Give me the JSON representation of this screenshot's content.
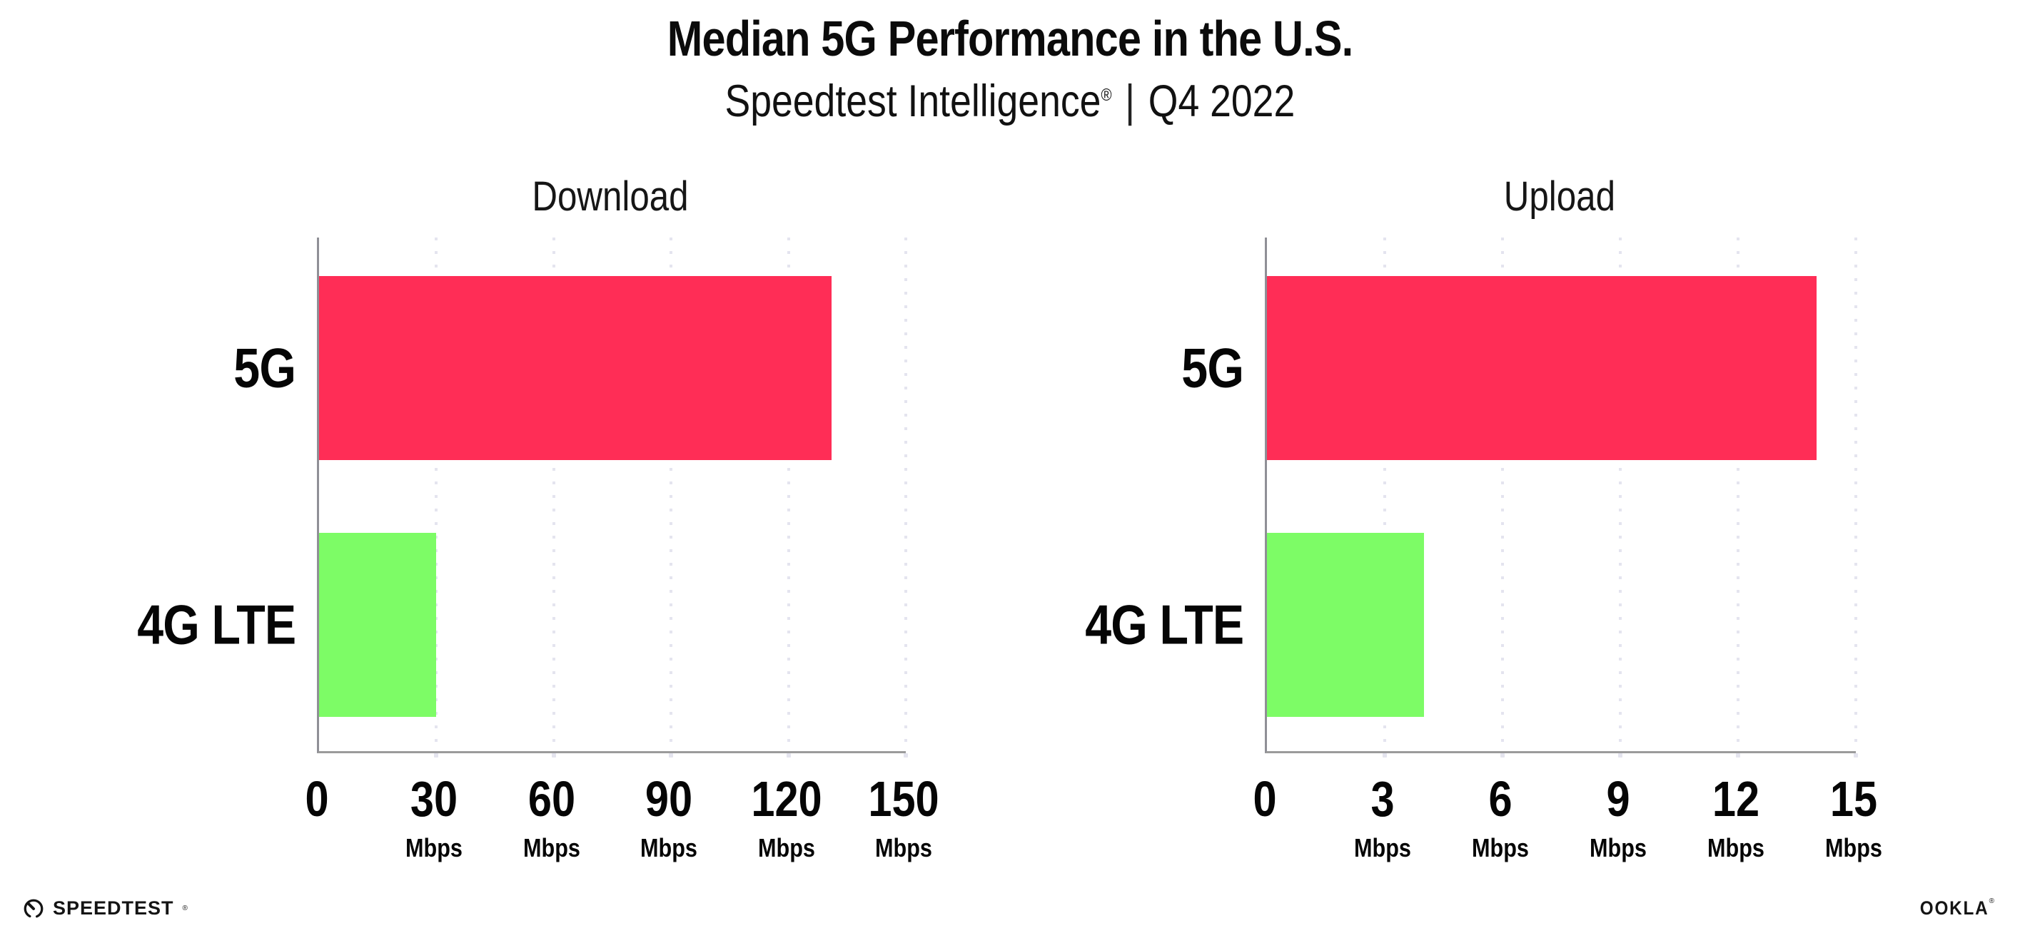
{
  "header": {
    "title": "Median 5G Performance in the U.S.",
    "subtitle_product": "Speedtest Intelligence",
    "subtitle_mark": "®",
    "subtitle_divider": "|",
    "subtitle_period": "Q4 2022"
  },
  "colors": {
    "bar_5g": "#FF2D56",
    "bar_4g_lte": "#7DFC66",
    "axis": "#9B9B9B",
    "gridline": "#E4E4EF",
    "text": "#0B0B0B"
  },
  "chart_data": [
    {
      "type": "bar",
      "orientation": "horizontal",
      "title": "Download",
      "categories": [
        "5G",
        "4G LTE"
      ],
      "values": [
        131,
        30
      ],
      "unit": "Mbps",
      "xlim": [
        0,
        150
      ],
      "xticks": [
        0,
        30,
        60,
        90,
        120,
        150
      ],
      "grid": "vertical-dotted",
      "legend": "none",
      "bar_colors": [
        "#FF2D56",
        "#7DFC66"
      ]
    },
    {
      "type": "bar",
      "orientation": "horizontal",
      "title": "Upload",
      "categories": [
        "5G",
        "4G LTE"
      ],
      "values": [
        14,
        4
      ],
      "unit": "Mbps",
      "xlim": [
        0,
        15
      ],
      "xticks": [
        0,
        3,
        6,
        9,
        12,
        15
      ],
      "grid": "vertical-dotted",
      "legend": "none",
      "bar_colors": [
        "#FF2D56",
        "#7DFC66"
      ]
    }
  ],
  "footer": {
    "speedtest_label": "SPEEDTEST",
    "speedtest_mark": "®",
    "ookla_label": "OOKLA",
    "ookla_mark": "®",
    "speedtest_icon": "gauge-icon"
  }
}
